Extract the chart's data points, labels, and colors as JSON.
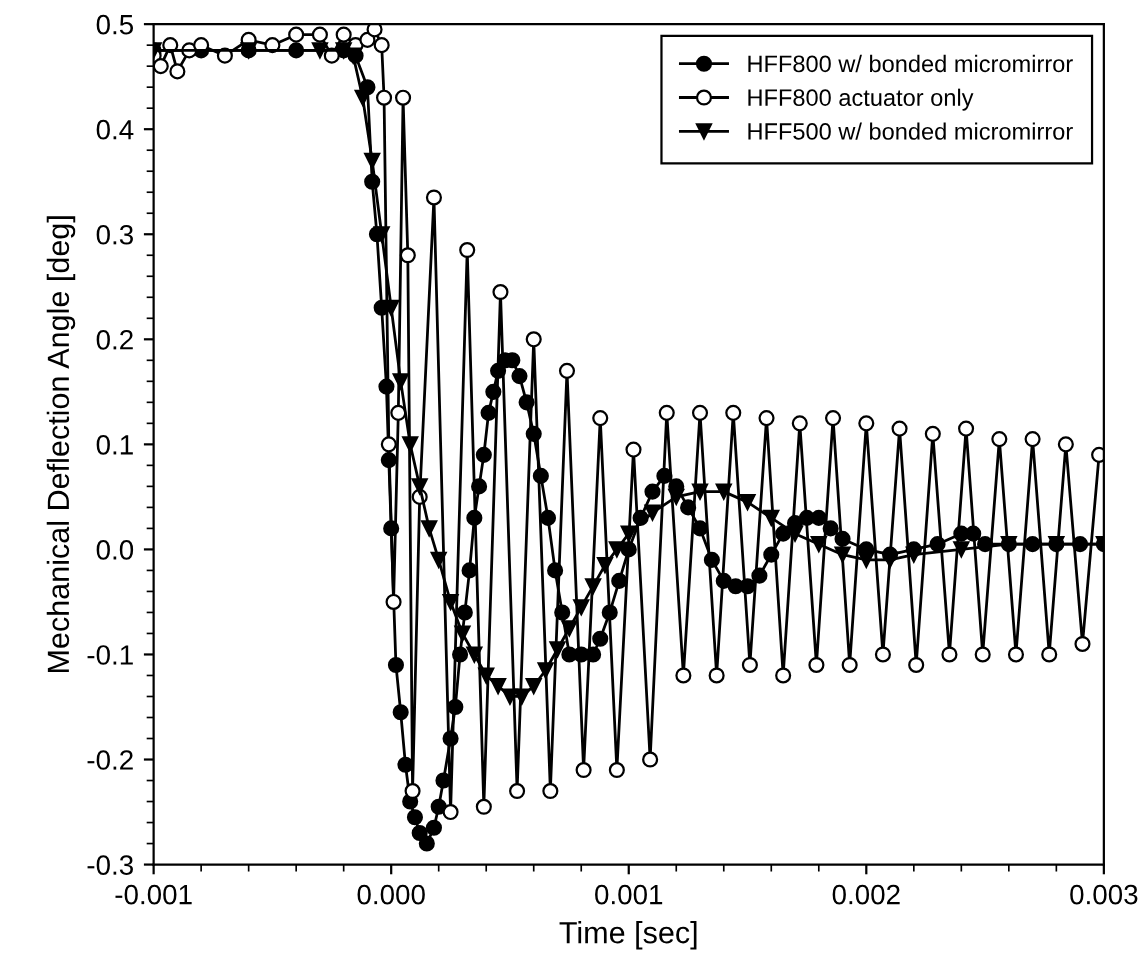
{
  "chart_data": {
    "type": "line",
    "xlabel": "Time [sec]",
    "ylabel": "Mechanical Deflection Angle [deg]",
    "xlim": [
      -0.001,
      0.003
    ],
    "xticks": [
      {
        "value": -0.001,
        "label": "-0.001"
      },
      {
        "value": 0,
        "label": "0.000"
      },
      {
        "value": 0.001,
        "label": "0.001"
      },
      {
        "value": 0.002,
        "label": "0.002"
      },
      {
        "value": 0.003,
        "label": "0.003"
      }
    ],
    "ylim": [
      -0.3,
      0.5
    ],
    "yticks": [
      {
        "value": -0.3,
        "label": "-0.3"
      },
      {
        "value": -0.2,
        "label": "-0.2"
      },
      {
        "value": -0.1,
        "label": "-0.1"
      },
      {
        "value": 0,
        "label": "0.0"
      },
      {
        "value": 0.1,
        "label": "0.1"
      },
      {
        "value": 0.2,
        "label": "0.2"
      },
      {
        "value": 0.3,
        "label": "0.3"
      },
      {
        "value": 0.4,
        "label": "0.4"
      },
      {
        "value": 0.5,
        "label": "0.5"
      }
    ],
    "grid": false,
    "legend": "top right",
    "line_style": "solid",
    "series": [
      {
        "name": "HFF800 w/ bonded micromirror",
        "color": "#000000",
        "marker": "circle",
        "x": [
          -0.001,
          -0.0008,
          -0.0006,
          -0.0004,
          -0.0002,
          -0.00015,
          -0.0001,
          -8e-05,
          -6e-05,
          -4e-05,
          -2e-05,
          -1e-05,
          0,
          2e-05,
          4e-05,
          6e-05,
          8e-05,
          0.0001,
          0.00012,
          0.00015,
          0.00018,
          0.0002,
          0.00022,
          0.00025,
          0.00027,
          0.00029,
          0.00031,
          0.00033,
          0.00035,
          0.00037,
          0.00039,
          0.00041,
          0.00043,
          0.00045,
          0.00048,
          0.00051,
          0.00054,
          0.00057,
          0.0006,
          0.00063,
          0.00066,
          0.00069,
          0.00072,
          0.00075,
          0.0008,
          0.00085,
          0.00088,
          0.00092,
          0.00096,
          0.001,
          0.00105,
          0.0011,
          0.00115,
          0.0012,
          0.00125,
          0.0013,
          0.00135,
          0.0014,
          0.00145,
          0.0015,
          0.00155,
          0.0016,
          0.00165,
          0.0017,
          0.00175,
          0.0018,
          0.00185,
          0.0019,
          0.002,
          0.0021,
          0.0022,
          0.0023,
          0.0024,
          0.00245,
          0.0025,
          0.0026,
          0.0027,
          0.0028,
          0.0029,
          0.003
        ],
        "values": [
          0.475,
          0.475,
          0.475,
          0.475,
          0.475,
          0.47,
          0.44,
          0.35,
          0.3,
          0.23,
          0.155,
          0.085,
          0.02,
          -0.11,
          -0.155,
          -0.205,
          -0.24,
          -0.255,
          -0.27,
          -0.28,
          -0.265,
          -0.245,
          -0.22,
          -0.18,
          -0.15,
          -0.1,
          -0.06,
          -0.02,
          0.03,
          0.06,
          0.09,
          0.13,
          0.15,
          0.17,
          0.18,
          0.18,
          0.165,
          0.14,
          0.11,
          0.07,
          0.03,
          -0.02,
          -0.06,
          -0.1,
          -0.1,
          -0.1,
          -0.085,
          -0.06,
          -0.03,
          0,
          0.03,
          0.055,
          0.07,
          0.06,
          0.04,
          0.02,
          -0.01,
          -0.03,
          -0.035,
          -0.035,
          -0.025,
          -0.005,
          0.015,
          0.025,
          0.03,
          0.03,
          0.02,
          0.01,
          0,
          -0.005,
          0,
          0.005,
          0.015,
          0.015,
          0.005,
          0.005,
          0.005,
          0.005,
          0.005,
          0.005
        ]
      },
      {
        "name": "HFF800 actuator only",
        "color": "#ffffff",
        "marker": "circle",
        "x": [
          -0.001,
          -0.00097,
          -0.00093,
          -0.0009,
          -0.00085,
          -0.0008,
          -0.0007,
          -0.0006,
          -0.0005,
          -0.0004,
          -0.0003,
          -0.00025,
          -0.0002,
          -0.00015,
          -0.0001,
          -7e-05,
          -4e-05,
          -3e-05,
          -1e-05,
          1e-05,
          3e-05,
          5e-05,
          7e-05,
          9e-05,
          0.00012,
          0.00018,
          0.00025,
          0.00032,
          0.00039,
          0.00046,
          0.00053,
          0.0006,
          0.00067,
          0.00074,
          0.00081,
          0.00088,
          0.00095,
          0.00102,
          0.00109,
          0.00116,
          0.00123,
          0.0013,
          0.00137,
          0.00144,
          0.00151,
          0.00158,
          0.00165,
          0.00172,
          0.00179,
          0.00186,
          0.00193,
          0.002,
          0.00207,
          0.00214,
          0.00221,
          0.00228,
          0.00235,
          0.00242,
          0.00249,
          0.00256,
          0.00263,
          0.0027,
          0.00277,
          0.00284,
          0.00291,
          0.00298
        ],
        "values": [
          0.47,
          0.46,
          0.48,
          0.455,
          0.475,
          0.48,
          0.47,
          0.485,
          0.48,
          0.49,
          0.49,
          0.47,
          0.49,
          0.48,
          0.485,
          0.495,
          0.48,
          0.43,
          0.1,
          -0.05,
          0.13,
          0.43,
          0.28,
          -0.23,
          0.05,
          0.335,
          -0.25,
          0.285,
          -0.245,
          0.245,
          -0.23,
          0.2,
          -0.23,
          0.17,
          -0.21,
          0.125,
          -0.21,
          0.095,
          -0.2,
          0.13,
          -0.12,
          0.13,
          -0.12,
          0.13,
          -0.11,
          0.125,
          -0.12,
          0.12,
          -0.11,
          0.125,
          -0.11,
          0.12,
          -0.1,
          0.115,
          -0.11,
          0.11,
          -0.1,
          0.115,
          -0.1,
          0.105,
          -0.1,
          0.105,
          -0.1,
          0.1,
          -0.09,
          0.09
        ]
      },
      {
        "name": "HFF500 w/ bonded micromirror",
        "color": "#000000",
        "marker": "triangle",
        "x": [
          -0.001,
          -0.0006,
          -0.0003,
          -0.0002,
          -0.00016,
          -0.00012,
          -8e-05,
          -4e-05,
          0,
          4e-05,
          8e-05,
          0.00012,
          0.00016,
          0.0002,
          0.00025,
          0.0003,
          0.00035,
          0.0004,
          0.00045,
          0.0005,
          0.00055,
          0.0006,
          0.00065,
          0.0007,
          0.00075,
          0.0008,
          0.00085,
          0.0009,
          0.00095,
          0.001,
          0.0011,
          0.0012,
          0.0013,
          0.0014,
          0.0015,
          0.0016,
          0.0017,
          0.0018,
          0.0019,
          0.002,
          0.0021,
          0.0022,
          0.0024,
          0.0026,
          0.0028,
          0.003
        ],
        "values": [
          0.475,
          0.475,
          0.475,
          0.475,
          0.47,
          0.43,
          0.37,
          0.3,
          0.23,
          0.16,
          0.1,
          0.06,
          0.02,
          -0.01,
          -0.05,
          -0.08,
          -0.1,
          -0.12,
          -0.13,
          -0.14,
          -0.14,
          -0.13,
          -0.115,
          -0.095,
          -0.075,
          -0.055,
          -0.035,
          -0.015,
          0,
          0.015,
          0.035,
          0.05,
          0.055,
          0.055,
          0.045,
          0.03,
          0.015,
          0.005,
          -0.005,
          -0.01,
          -0.01,
          -0.005,
          0,
          0.005,
          0.005,
          0.005
        ]
      }
    ]
  }
}
